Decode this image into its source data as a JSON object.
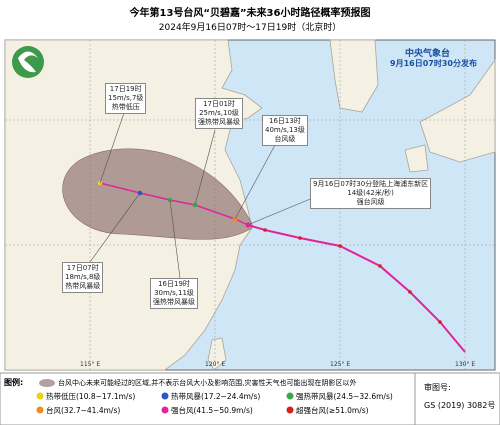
{
  "header": {
    "title": "今年第13号台风“贝碧嘉”未来36小时路径概率预报图",
    "subtitle": "2024年9月16日07时～17日19时（北京时）",
    "agency": "中央气象台",
    "issued": "9月16日07时30分发布"
  },
  "annotations": [
    {
      "lines": [
        "17日19时",
        "15m/s,7级",
        "热带低压"
      ]
    },
    {
      "lines": [
        "17日01时",
        "25m/s,10级",
        "强热带风暴级"
      ]
    },
    {
      "lines": [
        "16日13时",
        "40m/s,13级",
        "台风级"
      ]
    },
    {
      "lines": [
        "9月16日07时30分登陆上海浦东新区",
        "14级(42米/秒)",
        "强台风级"
      ]
    },
    {
      "lines": [
        "17日07时",
        "18m/s,8级",
        "热带风暴级"
      ]
    },
    {
      "lines": [
        "16日19时",
        "30m/s,11级",
        "强热带风暴级"
      ]
    }
  ],
  "longitudes": [
    "115° E",
    "120° E",
    "125° E",
    "130° E"
  ],
  "legend": {
    "title": "图例:",
    "cone_note": "台风中心未来可能经过的区域,并不表示台风大小及影响范围,灾害性天气也可能出现在阴影区以外",
    "items": [
      {
        "label": "热带低压(10.8~17.1m/s)",
        "color": "#e8d21d"
      },
      {
        "label": "热带风暴(17.2~24.4m/s)",
        "color": "#2f54c8"
      },
      {
        "label": "强热带风暴(24.5~32.6m/s)",
        "color": "#3aa94a"
      },
      {
        "label": "台风(32.7~41.4m/s)",
        "color": "#f08c1e"
      },
      {
        "label": "强台风(41.5~50.9m/s)",
        "color": "#e0249a"
      },
      {
        "label": "超强台风(≥51.0m/s)",
        "color": "#d81e1e"
      }
    ]
  },
  "approval": {
    "label": "审图号:",
    "code": "GS (2019) 3082号"
  }
}
